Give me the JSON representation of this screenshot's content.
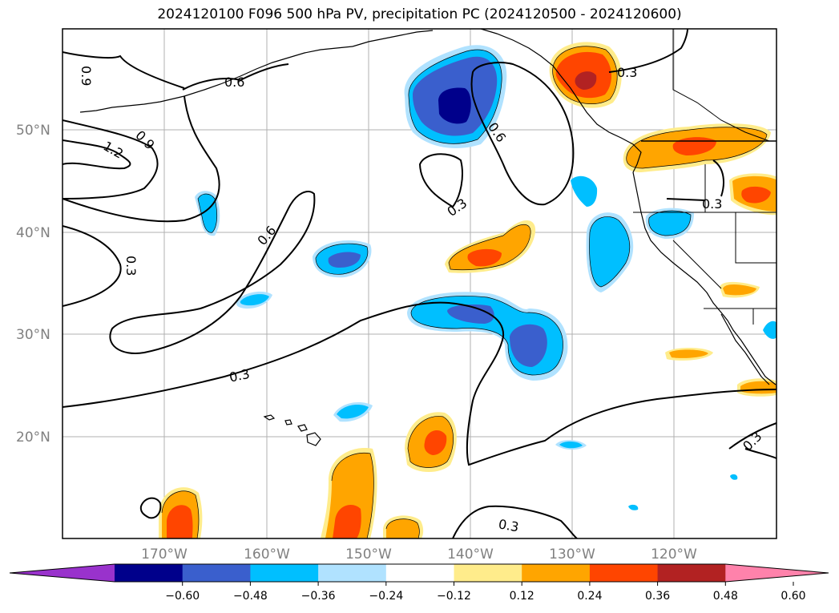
{
  "title": "2024120100 F096 500 hPa PV, precipitation PC (2024120500 - 2024120600)",
  "lat_labels": [
    "50°N",
    "40°N",
    "30°N",
    "20°N"
  ],
  "lon_labels": [
    "170°W",
    "160°W",
    "150°W",
    "140°W",
    "130°W",
    "120°W"
  ],
  "colorbar": {
    "tick_labels": [
      "−0.60",
      "−0.48",
      "−0.36",
      "−0.24",
      "−0.12",
      "0.12",
      "0.24",
      "0.36",
      "0.48",
      "0.60"
    ],
    "colors": [
      "#9932cc",
      "#00008b",
      "#3a5fcd",
      "#00bfff",
      "#b0e2ff",
      "#ffffff",
      "#ffec8b",
      "#ffa500",
      "#ff4500",
      "#b22222",
      "#ff82ab"
    ]
  },
  "contour_labels": [
    "0.9",
    "0.6",
    "1.2",
    "0.9",
    "0.3",
    "0.6",
    "0.3",
    "0.3",
    "0.6",
    "0.3",
    "0.3",
    "0.3",
    "0.3"
  ]
}
